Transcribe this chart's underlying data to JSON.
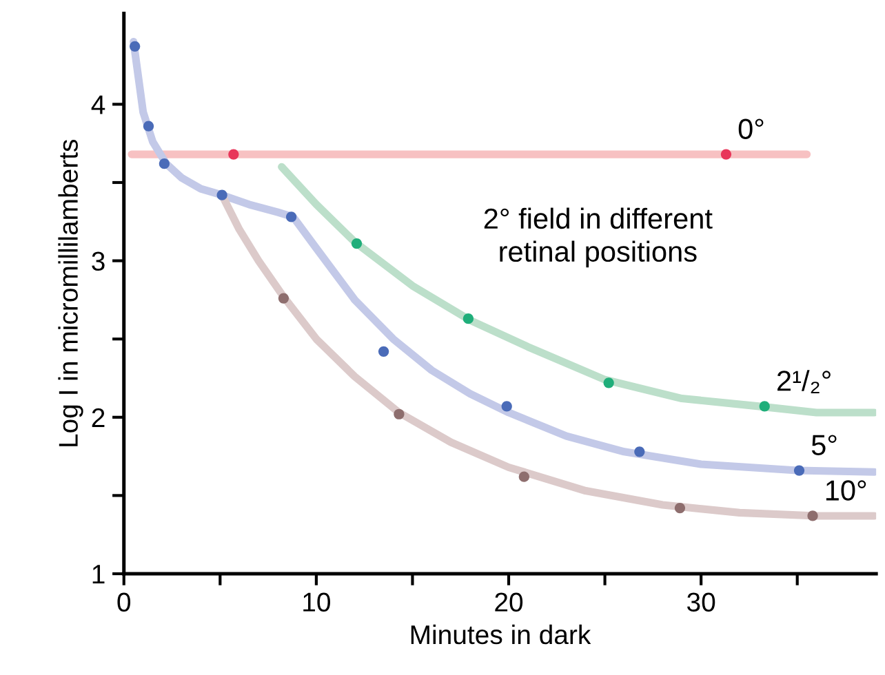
{
  "chart_data": {
    "type": "scatter",
    "xlabel": "Minutes in dark",
    "ylabel": "Log I in micromillilamberts",
    "xlim": [
      0,
      39.1
    ],
    "ylim": [
      1,
      4.58
    ],
    "xticks": [
      0,
      {
        "value": 5,
        "label": null
      },
      10,
      {
        "value": 15,
        "label": null
      },
      20,
      {
        "value": 25,
        "label": null
      },
      30,
      {
        "value": 35,
        "label": null
      }
    ],
    "yticks": [
      1,
      {
        "value": 1.5,
        "label": null
      },
      2,
      {
        "value": 2.5,
        "label": null
      },
      3,
      {
        "value": 3.5,
        "label": null
      },
      4
    ],
    "grid": false,
    "legend": false,
    "marker": "circle",
    "annotations": [
      "2° field in different\nretinal positions"
    ],
    "series": [
      {
        "type": "line",
        "marker": "none",
        "color": "#f7c1c2",
        "x": [
          0.4,
          35.5
        ],
        "values": [
          3.68,
          3.68
        ]
      },
      {
        "type": "line",
        "marker": "none",
        "color": "#bcdfca",
        "x": [
          8.2,
          10,
          12,
          15,
          18,
          21,
          25,
          29,
          33,
          36,
          39
        ],
        "values": [
          3.6,
          3.36,
          3.12,
          2.84,
          2.62,
          2.45,
          2.24,
          2.12,
          2.07,
          2.03,
          2.03
        ]
      },
      {
        "type": "line",
        "marker": "none",
        "color": "#c3c9e8",
        "x": [
          0.5,
          1,
          1.5,
          2.2,
          3,
          4,
          5.1,
          6.5,
          8,
          8.8,
          10,
          12,
          14,
          16,
          18,
          20,
          23,
          26,
          30,
          35,
          39
        ],
        "values": [
          4.4,
          3.95,
          3.76,
          3.62,
          3.53,
          3.46,
          3.42,
          3.36,
          3.31,
          3.28,
          3.08,
          2.75,
          2.5,
          2.3,
          2.15,
          2.03,
          1.88,
          1.78,
          1.7,
          1.66,
          1.65
        ]
      },
      {
        "type": "line",
        "marker": "none",
        "color": "#dccaca",
        "x": [
          5.1,
          6,
          7,
          8.3,
          10,
          12,
          14.3,
          17,
          20,
          24,
          28,
          32,
          36,
          39
        ],
        "values": [
          3.42,
          3.2,
          3.0,
          2.77,
          2.5,
          2.26,
          2.03,
          1.84,
          1.68,
          1.53,
          1.44,
          1.39,
          1.37,
          1.37
        ]
      },
      {
        "name": "0°",
        "color": "#e8365a",
        "x": [
          5.7,
          31.3
        ],
        "values": [
          3.68,
          3.68
        ]
      },
      {
        "name": "2¹/₂°",
        "color": "#1fae7a",
        "x": [
          12.1,
          17.9,
          25.2,
          33.3
        ],
        "values": [
          3.11,
          2.63,
          2.22,
          2.07
        ]
      },
      {
        "name": "5°",
        "color": "#4a6bb8",
        "x": [
          0.57,
          1.28,
          2.1,
          5.1,
          8.7,
          13.5,
          19.9,
          26.8,
          35.1
        ],
        "values": [
          4.37,
          3.86,
          3.62,
          3.42,
          3.28,
          2.42,
          2.07,
          1.78,
          1.66
        ]
      },
      {
        "name": "10°",
        "color": "#8e6e6e",
        "x": [
          8.3,
          14.3,
          20.8,
          28.9,
          35.8
        ],
        "values": [
          2.76,
          2.02,
          1.62,
          1.42,
          1.37
        ]
      }
    ]
  }
}
